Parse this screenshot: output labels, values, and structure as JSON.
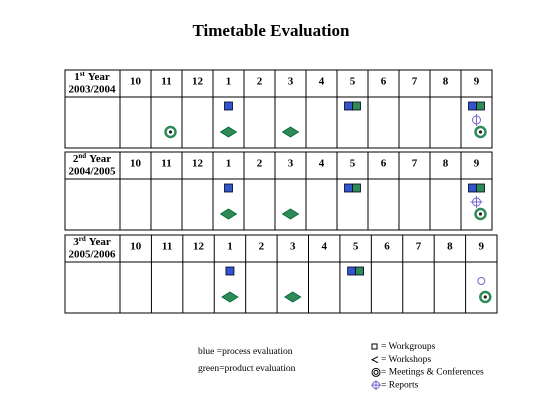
{
  "title": "Timetable Evaluation",
  "tables": [
    {
      "ordinal": "1",
      "suffix": "st",
      "word": "Year",
      "period": "2003/2004",
      "months": [
        "10",
        "11",
        "12",
        "1",
        "2",
        "3",
        "4",
        "5",
        "6",
        "7",
        "8",
        "9"
      ]
    },
    {
      "ordinal": "2",
      "suffix": "nd",
      "word": "Year",
      "period": "2004/2005",
      "months": [
        "10",
        "11",
        "12",
        "1",
        "2",
        "3",
        "4",
        "5",
        "6",
        "7",
        "8",
        "9"
      ]
    },
    {
      "ordinal": "3",
      "suffix": "rd",
      "word": "Year",
      "period": "2005/2006",
      "months": [
        "10",
        "11",
        "12",
        "1",
        "2",
        "3",
        "4",
        "5",
        "6",
        "7",
        "8",
        "9"
      ]
    }
  ],
  "legend": {
    "colors": [
      "blue =process evaluation",
      "green=product evaluation"
    ],
    "symbols": [
      "= Workgroups",
      "= Workshops",
      "= Meetings & Conferences",
      "= Reports"
    ]
  }
}
